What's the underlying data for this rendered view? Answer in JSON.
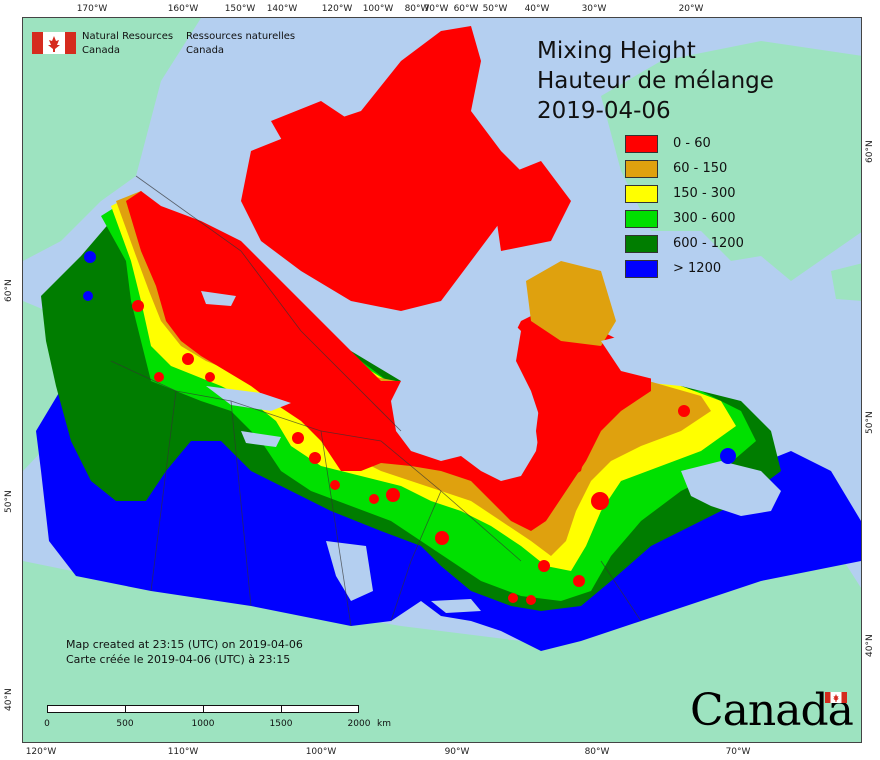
{
  "map": {
    "title_en": "Mixing Height",
    "title_fr": "Hauteur de mélange",
    "date": "2019-04-06",
    "agency_en_line1": "Natural Resources",
    "agency_en_line2": "Canada",
    "agency_fr_line1": "Ressources naturelles",
    "agency_fr_line2": "Canada",
    "note_en": "Map created at 23:15 (UTC) on 2019-04-06",
    "note_fr": "Carte créée le 2019-04-06 (UTC) à 23:15",
    "wordmark": "Canada"
  },
  "legend": [
    {
      "label": "0 - 60",
      "color": "#ff0000"
    },
    {
      "label": "60 - 150",
      "color": "#dfa10e"
    },
    {
      "label": "150 - 300",
      "color": "#ffff00"
    },
    {
      "label": "300 - 600",
      "color": "#00e000"
    },
    {
      "label": "600 - 1200",
      "color": "#007d00"
    },
    {
      "label": "> 1200",
      "color": "#0000ff"
    }
  ],
  "colors": {
    "ocean": "#b4cff0",
    "land_outside": "#9de3c0",
    "lake": "#b4cff0"
  },
  "graticule": {
    "top_labels": [
      "170°W",
      "160°W",
      "150°W",
      "140°W",
      "120°W",
      "100°W",
      "80°W",
      "70°W",
      "60°W",
      "50°W",
      "40°W",
      "30°W",
      "20°W"
    ],
    "bottom_labels": [
      "120°W",
      "110°W",
      "100°W",
      "90°W",
      "80°W",
      "70°W"
    ],
    "left_labels": [
      "60°N",
      "50°N",
      "40°N"
    ],
    "right_labels": [
      "60°N",
      "50°N",
      "40°N"
    ]
  },
  "scale": {
    "labels": [
      "0",
      "500",
      "1000",
      "1500",
      "2000"
    ],
    "unit": "km"
  }
}
